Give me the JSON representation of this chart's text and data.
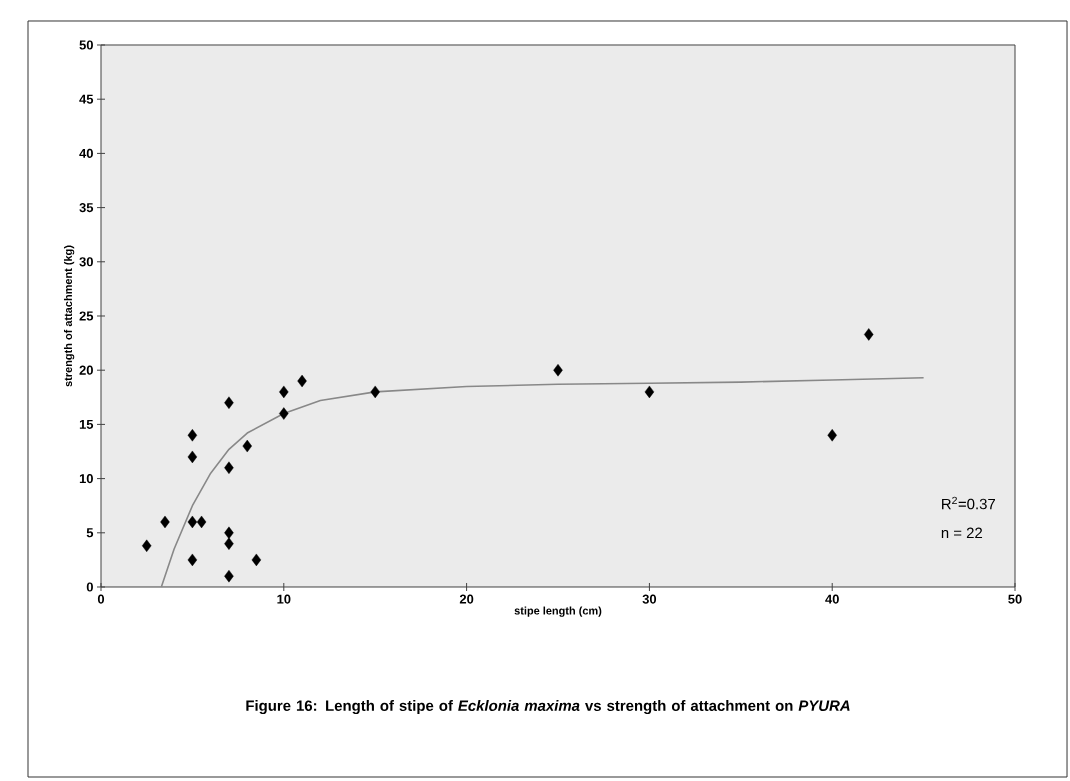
{
  "chart_data": {
    "type": "scatter",
    "title": "Figure 16: Length of stipe of *Ecklonia maxima* vs strength of attachment on *PYURA*",
    "xlabel": "stipe length (cm)",
    "ylabel": "strength of attachment (kg)",
    "annotations": [
      "R$^{2}$=0.37",
      "n = 22"
    ],
    "xlim": [
      0,
      50
    ],
    "ylim": [
      0,
      50
    ],
    "xticks": [
      0,
      10,
      20,
      30,
      40,
      50
    ],
    "yticks": [
      0,
      5,
      10,
      15,
      20,
      25,
      30,
      35,
      40,
      45,
      50
    ],
    "grid": false,
    "series": [
      {
        "type": "scatter",
        "color": "#000000",
        "marker": "diamond",
        "x": [
          2.5,
          3.5,
          5,
          5,
          5,
          5,
          5.5,
          7,
          7,
          7,
          7,
          7,
          8,
          8.5,
          10,
          10,
          11,
          15,
          25,
          30,
          40,
          42
        ],
        "values": [
          3.8,
          6,
          14,
          12,
          6,
          2.5,
          6,
          17,
          11,
          5,
          4,
          1,
          13,
          2.5,
          18,
          16,
          19,
          18,
          20,
          18,
          14,
          23.3
        ]
      },
      {
        "type": "line",
        "color": "#888888",
        "marker": "none",
        "x": [
          3.3,
          4,
          5,
          6,
          7,
          8,
          10,
          12,
          15,
          20,
          25,
          30,
          35,
          40,
          45
        ],
        "values": [
          0,
          3.5,
          7.5,
          10.5,
          12.7,
          14.2,
          16,
          17.2,
          18,
          18.5,
          18.7,
          18.8,
          18.9,
          19.1,
          19.3
        ]
      }
    ]
  }
}
